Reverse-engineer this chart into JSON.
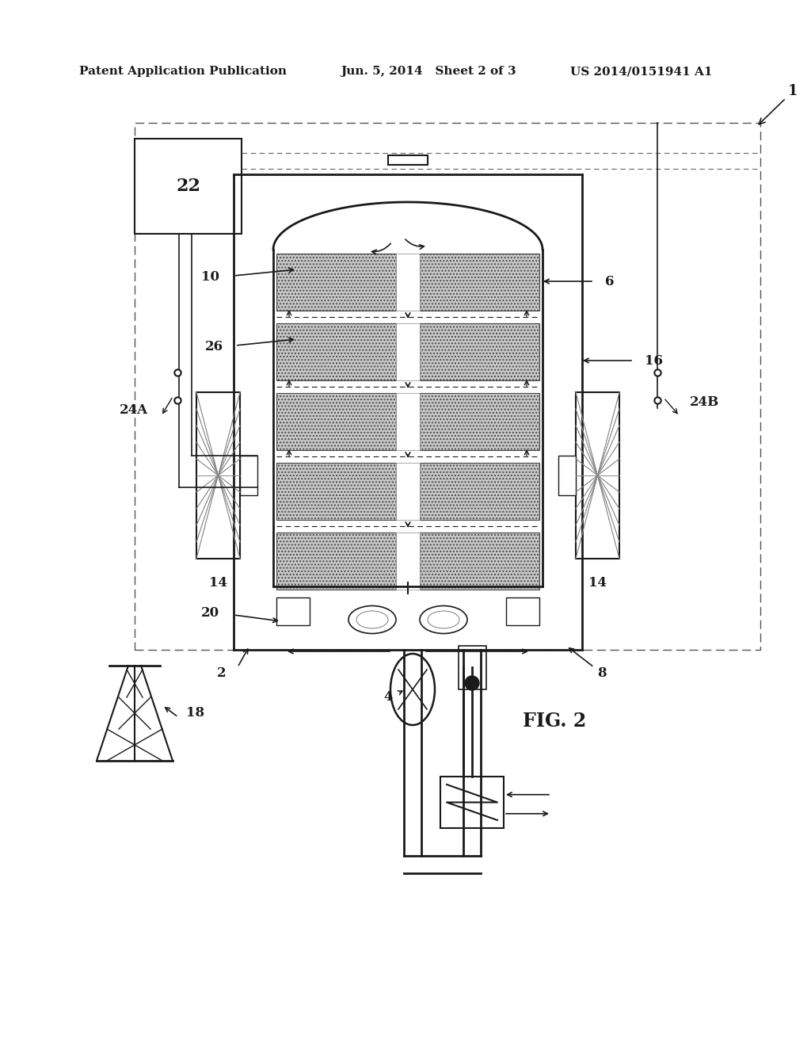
{
  "title_left": "Patent Application Publication",
  "title_mid": "Jun. 5, 2014   Sheet 2 of 3",
  "title_right": "US 2014/0151941 A1",
  "fig_label": "FIG. 2",
  "bg_color": "#ffffff",
  "line_color": "#1a1a1a",
  "gray_fill": "#c8c8c8"
}
